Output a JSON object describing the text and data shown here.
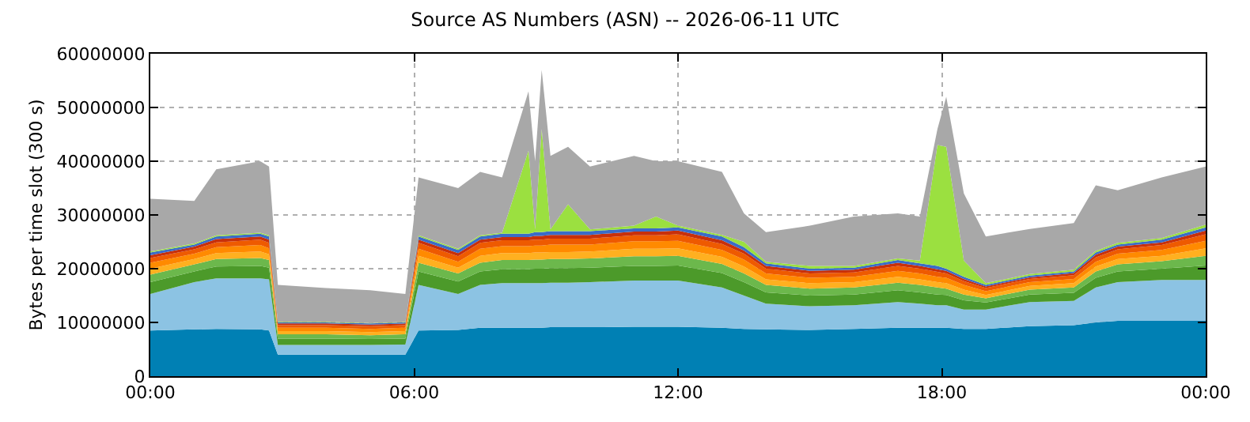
{
  "chart_data": {
    "type": "area",
    "stacked": true,
    "title": "Source AS Numbers (ASN) -- 2026-06-11 UTC",
    "ylabel": "Bytes per time slot (300 s)",
    "x": [
      0,
      1,
      1.5,
      2.5,
      2.7,
      2.9,
      4,
      5,
      5.8,
      6.1,
      7,
      7.5,
      8,
      8.6,
      8.75,
      8.9,
      9.1,
      9.5,
      10,
      11,
      11.5,
      12,
      13,
      13.5,
      14,
      15,
      16,
      17,
      17.5,
      17.9,
      18.1,
      18.5,
      19,
      20,
      21,
      21.5,
      22,
      23,
      24
    ],
    "xlim": [
      0,
      24
    ],
    "xticks": [
      {
        "value": 0,
        "label": "00:00"
      },
      {
        "value": 6,
        "label": "06:00"
      },
      {
        "value": 12,
        "label": "12:00"
      },
      {
        "value": 18,
        "label": "18:00"
      },
      {
        "value": 24,
        "label": "00:00"
      }
    ],
    "ylim": [
      0,
      60000000
    ],
    "yticks": [
      0,
      10000000,
      20000000,
      30000000,
      40000000,
      50000000,
      60000000
    ],
    "grid": true,
    "line_style": "solid",
    "series": [
      {
        "color": "#0080b4",
        "values": [
          8500000,
          8700000,
          8800000,
          8700000,
          8500000,
          4000000,
          4000000,
          4000000,
          4000000,
          8500000,
          8600000,
          9000000,
          9000000,
          9000000,
          9000000,
          9000000,
          9100000,
          9100000,
          9100000,
          9200000,
          9200000,
          9200000,
          9000000,
          8800000,
          8700000,
          8600000,
          8800000,
          9000000,
          9000000,
          9000000,
          9000000,
          8800000,
          8800000,
          9300000,
          9500000,
          10000000,
          10300000,
          10300000,
          10300000
        ]
      },
      {
        "color": "#8cc3e3",
        "values": [
          6800000,
          8800000,
          9400000,
          9500000,
          9500000,
          1800000,
          1800000,
          1800000,
          1900000,
          8500000,
          6700000,
          8000000,
          8300000,
          8300000,
          8300000,
          8300000,
          8300000,
          8300000,
          8400000,
          8600000,
          8600000,
          8600000,
          7500000,
          6200000,
          4800000,
          4400000,
          4400000,
          4800000,
          4500000,
          4200000,
          4200000,
          3600000,
          3600000,
          4500000,
          4500000,
          6500000,
          7200000,
          7600000,
          7600000
        ]
      },
      {
        "color": "#4c9a2a",
        "values": [
          2200000,
          2000000,
          2200000,
          2300000,
          2200000,
          1200000,
          1200000,
          1100000,
          1100000,
          2500000,
          2300000,
          2500000,
          2600000,
          2600000,
          2700000,
          2700000,
          2700000,
          2700000,
          2700000,
          2700000,
          2700000,
          2800000,
          2700000,
          2500000,
          2100000,
          2000000,
          2000000,
          2200000,
          2100000,
          2000000,
          1900000,
          1700000,
          1300000,
          1400000,
          1500000,
          1800000,
          2000000,
          2100000,
          2700000
        ]
      },
      {
        "color": "#6cb84c",
        "values": [
          1400000,
          1300000,
          1400000,
          1500000,
          1400000,
          800000,
          800000,
          700000,
          800000,
          1600000,
          1500000,
          1600000,
          1700000,
          1700000,
          1700000,
          1700000,
          1700000,
          1700000,
          1700000,
          1800000,
          1800000,
          1800000,
          1700000,
          1600000,
          1400000,
          1300000,
          1300000,
          1400000,
          1400000,
          1300000,
          1200000,
          1100000,
          800000,
          900000,
          1000000,
          1200000,
          1300000,
          1400000,
          1800000
        ]
      },
      {
        "color": "#ffb020",
        "values": [
          1100000,
          1000000,
          1100000,
          1200000,
          1100000,
          600000,
          600000,
          600000,
          600000,
          1300000,
          1100000,
          1300000,
          1300000,
          1300000,
          1300000,
          1300000,
          1300000,
          1300000,
          1300000,
          1400000,
          1400000,
          1400000,
          1300000,
          1300000,
          1000000,
          1000000,
          1000000,
          1100000,
          1000000,
          1000000,
          1000000,
          900000,
          600000,
          700000,
          800000,
          900000,
          1000000,
          1000000,
          1400000
        ]
      },
      {
        "color": "#ff8a00",
        "values": [
          1100000,
          1000000,
          1100000,
          1200000,
          1100000,
          600000,
          600000,
          600000,
          600000,
          1300000,
          1100000,
          1300000,
          1300000,
          1300000,
          1300000,
          1300000,
          1400000,
          1400000,
          1300000,
          1400000,
          1400000,
          1400000,
          1300000,
          1300000,
          1100000,
          1000000,
          1000000,
          1100000,
          1100000,
          1000000,
          1000000,
          900000,
          700000,
          700000,
          800000,
          900000,
          1000000,
          1100000,
          1400000
        ]
      },
      {
        "color": "#ee5a00",
        "values": [
          900000,
          800000,
          900000,
          1000000,
          1000000,
          500000,
          500000,
          500000,
          500000,
          1100000,
          1000000,
          1100000,
          1100000,
          1100000,
          1100000,
          1100000,
          1100000,
          1100000,
          1100000,
          1100000,
          1100000,
          1200000,
          1100000,
          1100000,
          900000,
          800000,
          800000,
          900000,
          900000,
          900000,
          800000,
          700000,
          600000,
          600000,
          700000,
          800000,
          800000,
          900000,
          1200000
        ]
      },
      {
        "color": "#c8300a",
        "values": [
          500000,
          500000,
          600000,
          600000,
          600000,
          300000,
          300000,
          300000,
          300000,
          600000,
          600000,
          600000,
          600000,
          600000,
          700000,
          700000,
          700000,
          700000,
          700000,
          700000,
          700000,
          700000,
          700000,
          600000,
          500000,
          500000,
          500000,
          600000,
          500000,
          500000,
          500000,
          400000,
          300000,
          300000,
          400000,
          500000,
          500000,
          500000,
          700000
        ]
      },
      {
        "color": "#3a6cc8",
        "values": [
          500000,
          400000,
          500000,
          500000,
          600000,
          200000,
          200000,
          200000,
          200000,
          600000,
          600000,
          600000,
          600000,
          600000,
          700000,
          700000,
          700000,
          700000,
          700000,
          600000,
          600000,
          600000,
          700000,
          600000,
          500000,
          400000,
          400000,
          500000,
          500000,
          600000,
          400000,
          400000,
          300000,
          300000,
          300000,
          400000,
          400000,
          500000,
          600000
        ]
      },
      {
        "color": "#9be040",
        "values": [
          200000,
          200000,
          200000,
          200000,
          200000,
          100000,
          100000,
          100000,
          100000,
          200000,
          200000,
          200000,
          200000,
          15500000,
          500000,
          19200000,
          300000,
          5000000,
          300000,
          500000,
          2200000,
          300000,
          300000,
          1000000,
          300000,
          500000,
          300000,
          300000,
          500000,
          22500000,
          22700000,
          3000000,
          300000,
          300000,
          300000,
          300000,
          300000,
          300000,
          500000
        ]
      },
      {
        "color": "#a8a8a8",
        "values": [
          9800000,
          7900000,
          12300000,
          13300000,
          12800000,
          6900000,
          6300000,
          6100000,
          5200000,
          10800000,
          11300000,
          11800000,
          10300000,
          11000000,
          12700000,
          11000000,
          13700000,
          10700000,
          11700000,
          13000000,
          10300000,
          12000000,
          11700000,
          5300000,
          5500000,
          7500000,
          9200000,
          8400000,
          8200000,
          3000000,
          9300000,
          12500000,
          8700000,
          8400000,
          8700000,
          12200000,
          9800000,
          11300000,
          10800000
        ]
      }
    ]
  }
}
